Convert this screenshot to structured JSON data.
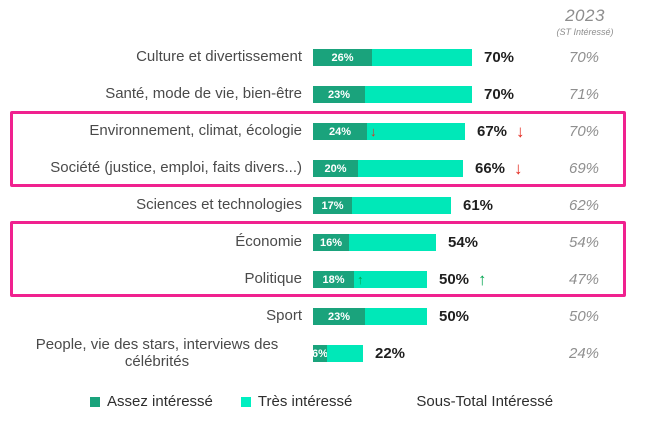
{
  "header": {
    "year": "2023",
    "subtitle": "(ST Intéressé)"
  },
  "legend": {
    "items": [
      {
        "label": "Assez intéressé",
        "color": "#1aa37c"
      },
      {
        "label": "Très intéressé",
        "color": "#00efc1"
      },
      {
        "label": "Sous-Total Intéressé"
      }
    ]
  },
  "colors": {
    "assez_segment": "#1aa37c",
    "tres_segment": "#00e8b8",
    "highlight_box": "#f0218f",
    "arrow_down": "#e3281e",
    "arrow_up": "#00a44f"
  },
  "chart_data": {
    "type": "bar",
    "orientation": "horizontal",
    "unit": "%",
    "series": [
      {
        "name": "Assez intéressé"
      },
      {
        "name": "Très intéressé"
      }
    ],
    "legend_position": "bottom",
    "right_column_header": "2023 (ST Intéressé)",
    "highlighted_row_indexes": [
      [
        2,
        3
      ],
      [
        5,
        6
      ]
    ],
    "rows": [
      {
        "label": "Culture et divertissement",
        "assez": 26,
        "total": 70,
        "st": 70,
        "assez_label": "26%",
        "total_label": "70%",
        "st_label": "70%"
      },
      {
        "label": "Santé, mode de vie, bien-être",
        "assez": 23,
        "total": 70,
        "st": 71,
        "assez_label": "23%",
        "total_label": "70%",
        "st_label": "71%"
      },
      {
        "label": "Environnement, climat, écologie",
        "assez": 24,
        "total": 67,
        "st": 70,
        "assez_label": "24%",
        "total_label": "67%",
        "st_label": "70%",
        "trend": "down",
        "bar_arrow": "↓",
        "total_arrow": "↓"
      },
      {
        "label": "Société (justice, emploi, faits divers...)",
        "assez": 20,
        "total": 66,
        "st": 69,
        "assez_label": "20%",
        "total_label": "66%",
        "st_label": "69%",
        "trend": "down",
        "total_arrow": "↓"
      },
      {
        "label": "Sciences et technologies",
        "assez": 17,
        "total": 61,
        "st": 62,
        "assez_label": "17%",
        "total_label": "61%",
        "st_label": "62%"
      },
      {
        "label": "Économie",
        "assez": 16,
        "total": 54,
        "st": 54,
        "assez_label": "16%",
        "total_label": "54%",
        "st_label": "54%"
      },
      {
        "label": "Politique",
        "assez": 18,
        "total": 50,
        "st": 47,
        "assez_label": "18%",
        "total_label": "50%",
        "st_label": "47%",
        "trend": "up",
        "bar_arrow": "↑",
        "total_arrow": "↑"
      },
      {
        "label": "Sport",
        "assez": 23,
        "total": 50,
        "st": 50,
        "assez_label": "23%",
        "total_label": "50%",
        "st_label": "50%"
      },
      {
        "label": "People, vie des stars, interviews des célébrités",
        "assez": 6,
        "total": 22,
        "st": 24,
        "assez_label": "6%",
        "total_label": "22%",
        "st_label": "24%"
      }
    ]
  }
}
